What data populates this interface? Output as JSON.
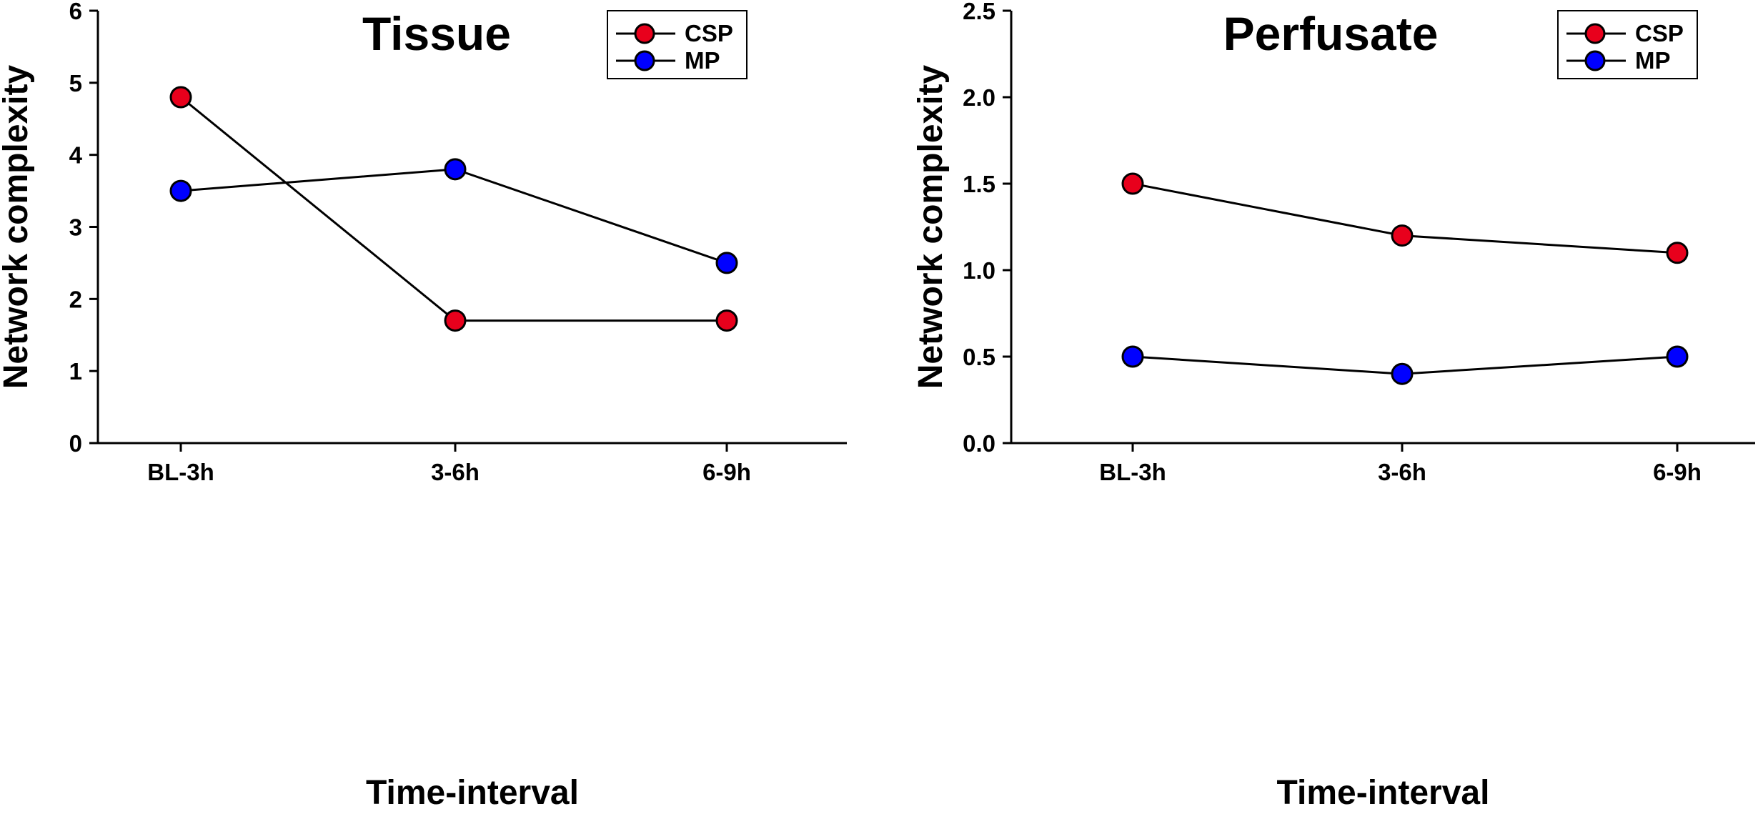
{
  "chart_data": [
    {
      "type": "line",
      "title": "Tissue",
      "xlabel": "Time-interval",
      "ylabel": "Network complexity",
      "categories": [
        "BL-3h",
        "3-6h",
        "6-9h"
      ],
      "ylim": [
        0,
        6
      ],
      "yticks": [
        "0",
        "1",
        "2",
        "3",
        "4",
        "5",
        "6"
      ],
      "legend_position": "top-right",
      "series": [
        {
          "name": "CSP",
          "color": "#e8001c",
          "values": [
            4.8,
            1.7,
            1.7
          ]
        },
        {
          "name": "MP",
          "color": "#0000ff",
          "values": [
            3.5,
            3.8,
            2.5
          ]
        }
      ]
    },
    {
      "type": "line",
      "title": "Perfusate",
      "xlabel": "Time-interval",
      "ylabel": "Network complexity",
      "categories": [
        "BL-3h",
        "3-6h",
        "6-9h"
      ],
      "ylim": [
        0,
        2.5
      ],
      "yticks": [
        "0.0",
        "0.5",
        "1.0",
        "1.5",
        "2.0",
        "2.5"
      ],
      "legend_position": "top-right",
      "series": [
        {
          "name": "CSP",
          "color": "#e8001c",
          "values": [
            1.5,
            1.2,
            1.1
          ]
        },
        {
          "name": "MP",
          "color": "#0000ff",
          "values": [
            0.5,
            0.4,
            0.5
          ]
        }
      ]
    }
  ]
}
